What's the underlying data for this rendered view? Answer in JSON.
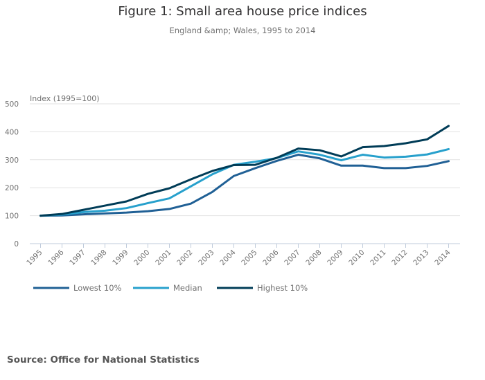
{
  "chart_data": {
    "type": "line",
    "title": "Figure 1: Small area house price indices",
    "subtitle": "England &amp; Wales, 1995 to 2014",
    "xlabel": "",
    "ylabel": "Index (1995=100)",
    "ylim": [
      0,
      500
    ],
    "yticks": [
      0,
      100,
      200,
      300,
      400,
      500
    ],
    "grid": true,
    "legend_position": "bottom-left",
    "x": [
      "1995",
      "1996",
      "1997",
      "1998",
      "1999",
      "2000",
      "2001",
      "2002",
      "2003",
      "2004",
      "2005",
      "2006",
      "2007",
      "2008",
      "2009",
      "2010",
      "2011",
      "2012",
      "2013",
      "2014"
    ],
    "series": [
      {
        "name": "Lowest 10%",
        "color": "#206095",
        "values": [
          100,
          101,
          105,
          108,
          111,
          116,
          124,
          143,
          185,
          242,
          270,
          296,
          318,
          305,
          279,
          279,
          270,
          270,
          278,
          295
        ]
      },
      {
        "name": "Median",
        "color": "#27a0cc",
        "values": [
          100,
          104,
          113,
          118,
          127,
          145,
          162,
          205,
          248,
          282,
          293,
          306,
          330,
          318,
          298,
          318,
          308,
          311,
          319,
          338
        ]
      },
      {
        "name": "Highest 10%",
        "color": "#003c57",
        "values": [
          100,
          106,
          121,
          136,
          151,
          178,
          198,
          230,
          260,
          281,
          282,
          307,
          340,
          334,
          312,
          345,
          349,
          359,
          373,
          421
        ]
      }
    ]
  },
  "source": "Source: Office for National Statistics"
}
